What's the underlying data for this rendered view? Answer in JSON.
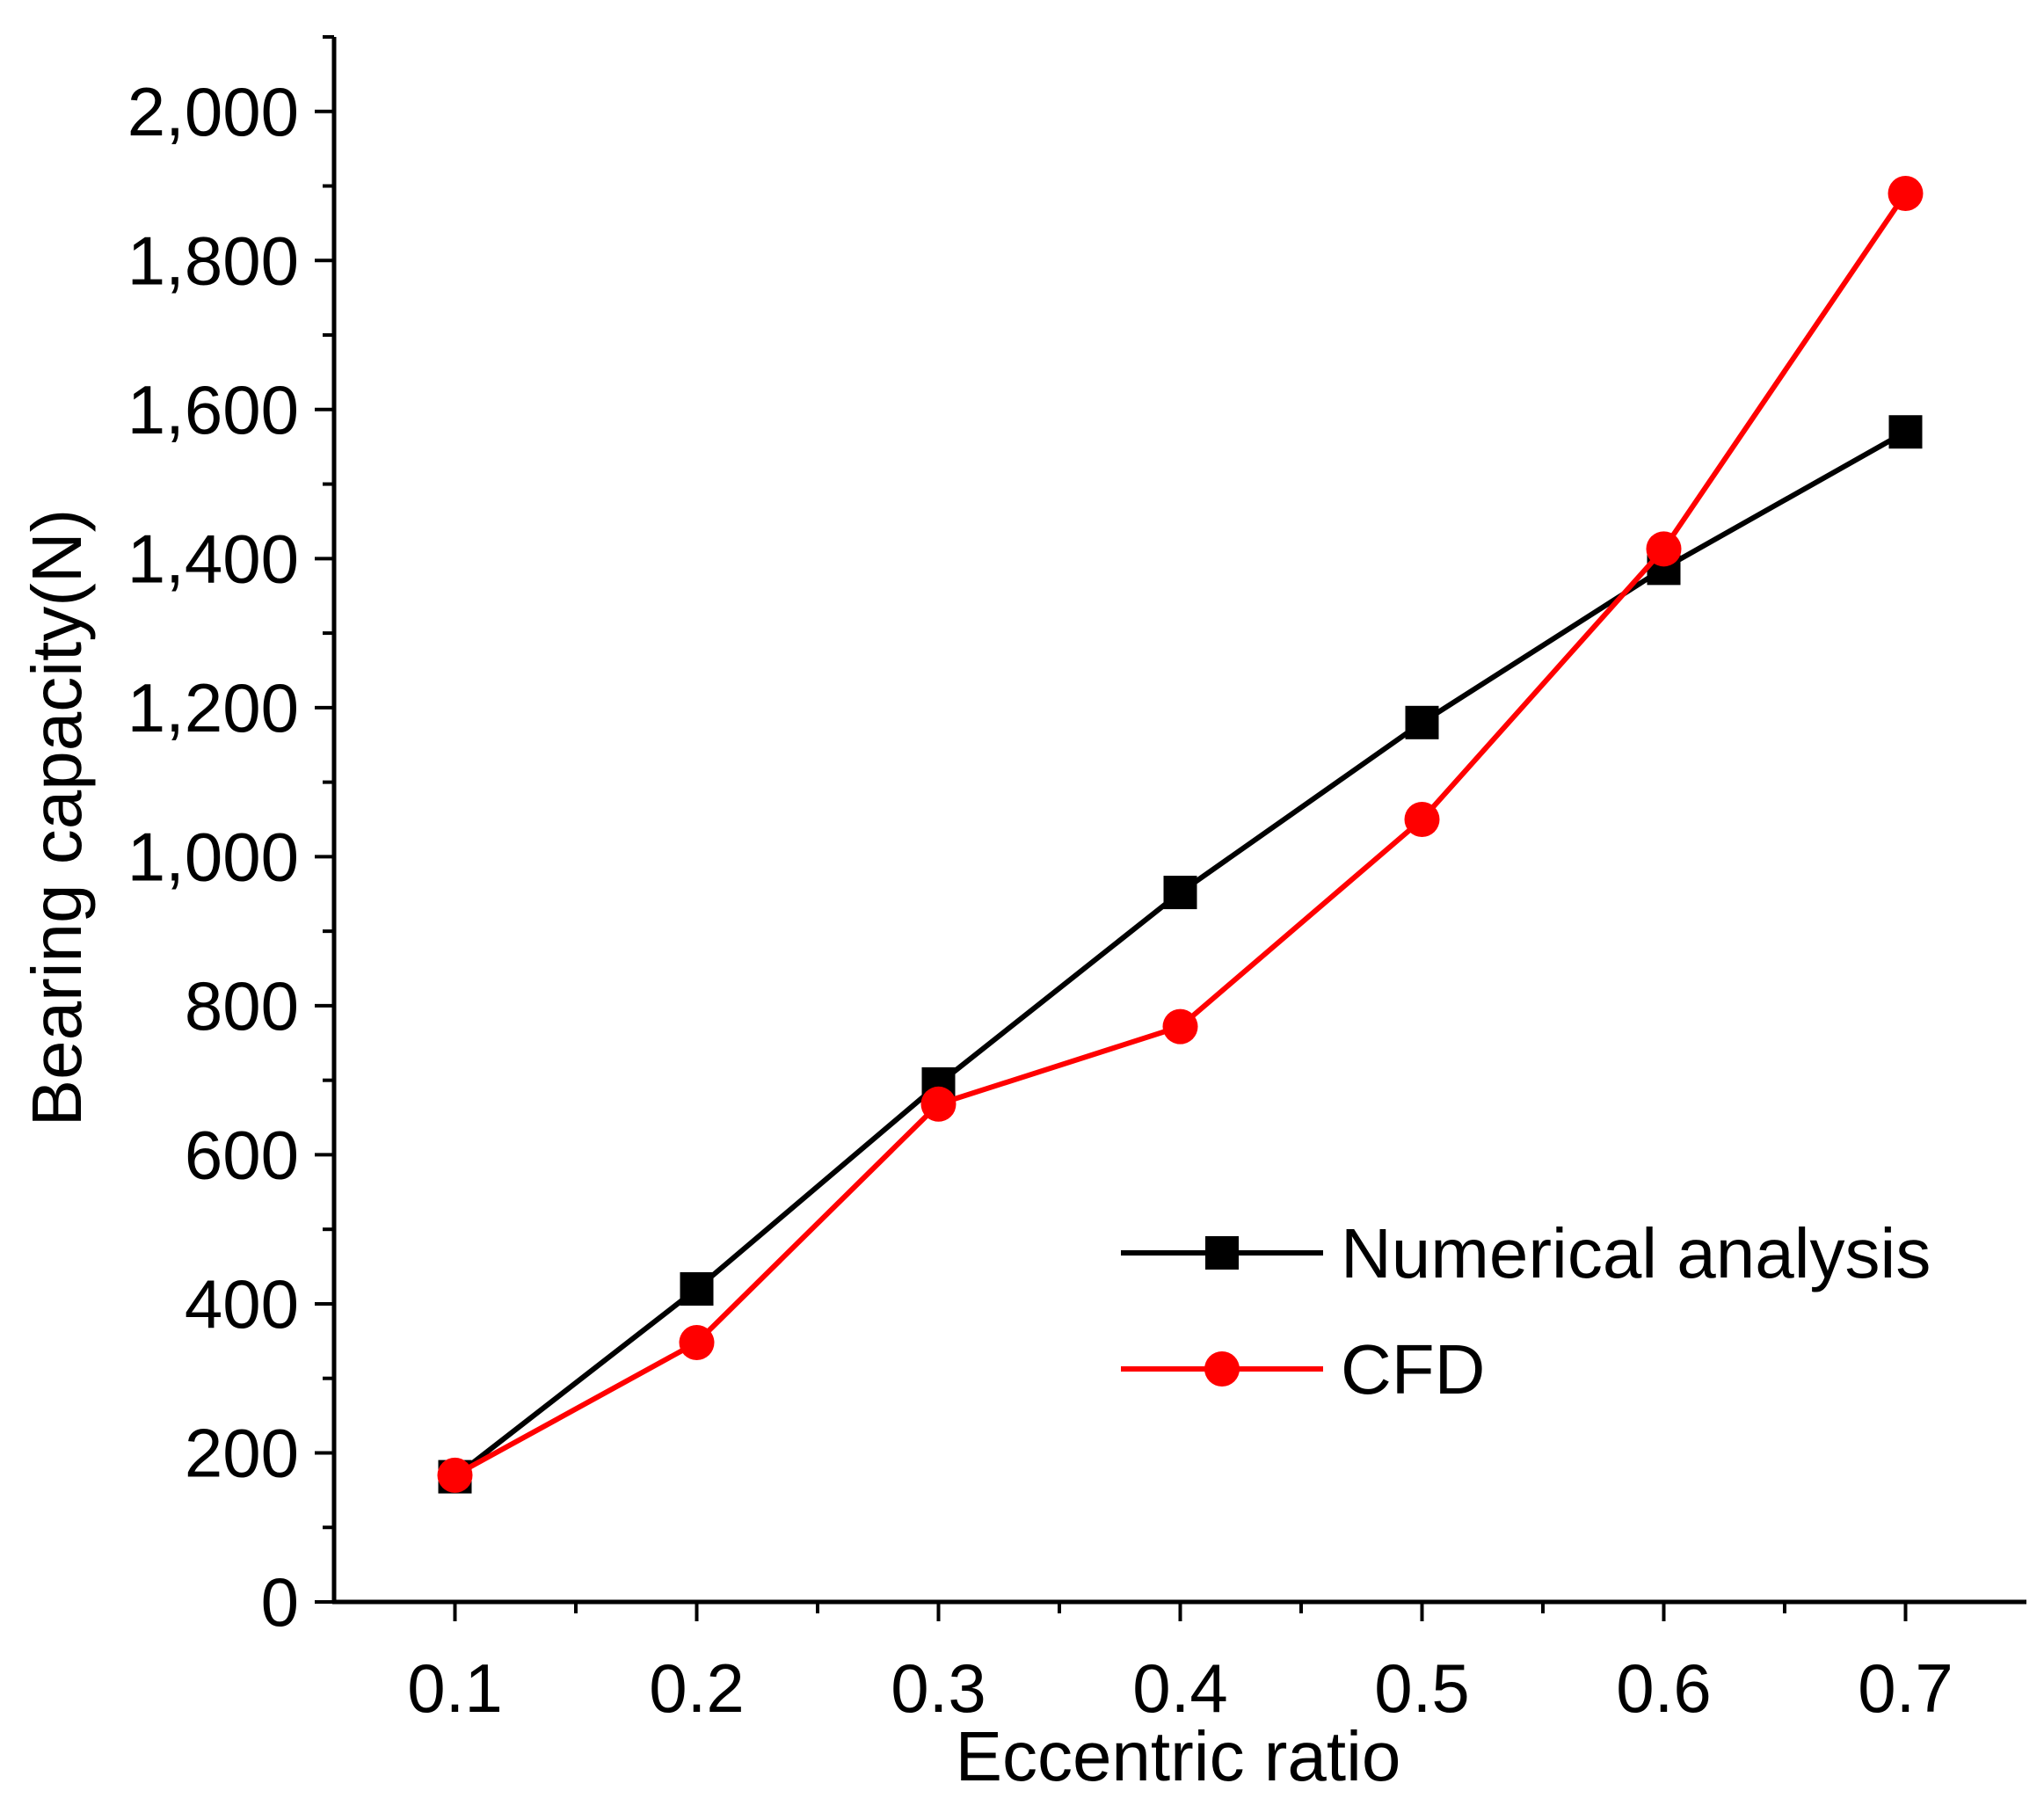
{
  "chart_data": {
    "type": "line",
    "title": "",
    "xlabel": "Eccentric ratio",
    "ylabel": "Bearing capacity(N)",
    "x": [
      0.1,
      0.2,
      0.3,
      0.4,
      0.5,
      0.6,
      0.7
    ],
    "x_tick_labels": [
      "0.1",
      "0.2",
      "0.3",
      "0.4",
      "0.5",
      "0.6",
      "0.7"
    ],
    "xlim": [
      0.05,
      0.75
    ],
    "y_ticks": [
      0,
      200,
      400,
      600,
      800,
      1000,
      1200,
      1400,
      1600,
      1800,
      2000
    ],
    "y_tick_labels": [
      "0",
      "200",
      "400",
      "600",
      "800",
      "1,000",
      "1,200",
      "1,400",
      "1,600",
      "1,800",
      "2,000"
    ],
    "ylim": [
      0,
      2100
    ],
    "grid": false,
    "legend_position": "bottom-right",
    "series": [
      {
        "name": "Numerical analysis",
        "marker": "square",
        "color": "#000000",
        "values": [
          168,
          420,
          695,
          952,
          1180,
          1387,
          1570
        ]
      },
      {
        "name": "CFD",
        "marker": "circle",
        "color": "#ff0000",
        "values": [
          170,
          348,
          668,
          772,
          1050,
          1413,
          1890
        ]
      }
    ]
  }
}
